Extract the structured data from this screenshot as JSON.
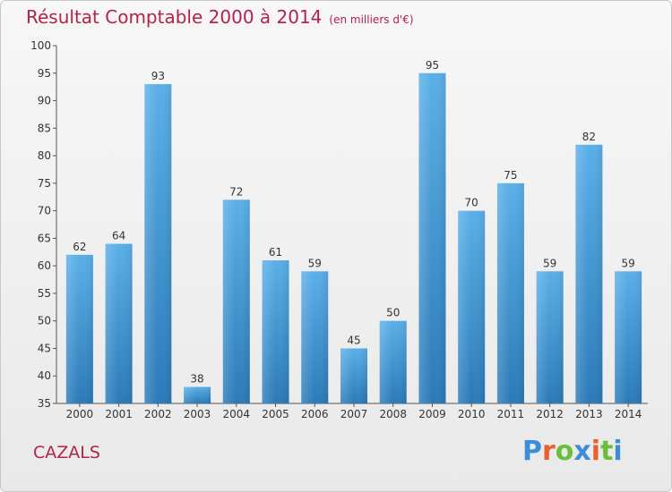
{
  "header": {
    "title": "Résultat Comptable 2000 à 2014",
    "subtitle": "(en milliers d'€)"
  },
  "footer": {
    "town": "CAZALS",
    "brand": "Proxiti"
  },
  "colors": {
    "title": "#b2234a",
    "bar_top": "#5aafe8",
    "bar_bottom": "#2a7ab8",
    "brand_letters": [
      "#3b8ed6",
      "#e8612c",
      "#6abf3a",
      "#3b8ed6",
      "#e8612c",
      "#6abf3a",
      "#3b8ed6"
    ]
  },
  "chart_data": {
    "type": "bar",
    "title": "Résultat Comptable 2000 à 2014",
    "xlabel": "",
    "ylabel": "en milliers d'€",
    "categories": [
      "2000",
      "2001",
      "2002",
      "2003",
      "2004",
      "2005",
      "2006",
      "2007",
      "2008",
      "2009",
      "2010",
      "2011",
      "2012",
      "2013",
      "2014"
    ],
    "values": [
      62,
      64,
      93,
      38,
      72,
      61,
      59,
      45,
      50,
      95,
      70,
      75,
      59,
      82,
      59
    ],
    "ylim": [
      35,
      100
    ],
    "yticks": [
      35,
      40,
      45,
      50,
      55,
      60,
      65,
      70,
      75,
      80,
      85,
      90,
      95,
      100
    ],
    "grid": false,
    "data_labels": true
  }
}
